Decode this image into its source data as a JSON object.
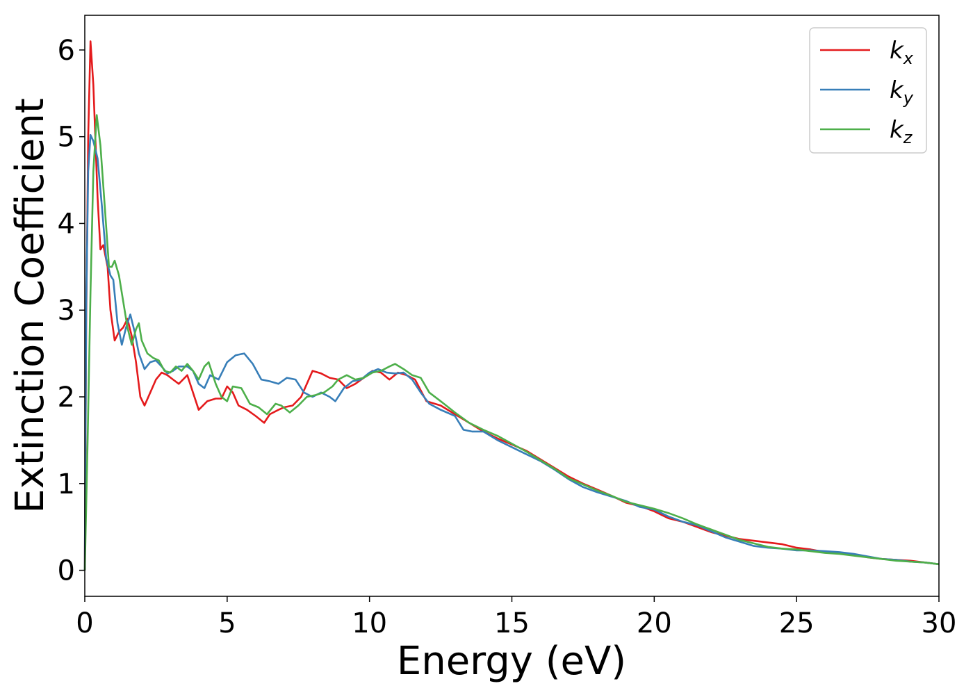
{
  "chart_data": {
    "type": "line",
    "title": "",
    "xlabel": "Energy (eV)",
    "ylabel": "Extinction Coefficient",
    "xlim": [
      0,
      30
    ],
    "ylim": [
      -0.3,
      6.4
    ],
    "xticks": [
      0,
      5,
      10,
      15,
      20,
      25,
      30
    ],
    "yticks": [
      0,
      1,
      2,
      3,
      4,
      5,
      6
    ],
    "grid": false,
    "legend_position": "top-right",
    "series": [
      {
        "name": "k",
        "subscript": "x",
        "color": "#e41a1c",
        "points": [
          [
            0,
            0
          ],
          [
            0.05,
            2.8
          ],
          [
            0.12,
            5.0
          ],
          [
            0.2,
            6.1
          ],
          [
            0.3,
            5.6
          ],
          [
            0.45,
            4.3
          ],
          [
            0.55,
            3.7
          ],
          [
            0.65,
            3.75
          ],
          [
            0.8,
            3.5
          ],
          [
            0.9,
            3.0
          ],
          [
            1.05,
            2.65
          ],
          [
            1.2,
            2.75
          ],
          [
            1.35,
            2.8
          ],
          [
            1.5,
            2.9
          ],
          [
            1.65,
            2.7
          ],
          [
            1.8,
            2.4
          ],
          [
            1.95,
            2.0
          ],
          [
            2.1,
            1.9
          ],
          [
            2.3,
            2.05
          ],
          [
            2.5,
            2.2
          ],
          [
            2.7,
            2.28
          ],
          [
            2.9,
            2.25
          ],
          [
            3.1,
            2.2
          ],
          [
            3.3,
            2.15
          ],
          [
            3.6,
            2.25
          ],
          [
            3.8,
            2.05
          ],
          [
            4.0,
            1.85
          ],
          [
            4.3,
            1.95
          ],
          [
            4.6,
            1.98
          ],
          [
            4.8,
            1.98
          ],
          [
            5.0,
            2.12
          ],
          [
            5.2,
            2.05
          ],
          [
            5.4,
            1.9
          ],
          [
            5.7,
            1.85
          ],
          [
            6.0,
            1.78
          ],
          [
            6.3,
            1.7
          ],
          [
            6.5,
            1.8
          ],
          [
            6.8,
            1.85
          ],
          [
            7.0,
            1.88
          ],
          [
            7.3,
            1.9
          ],
          [
            7.6,
            2.0
          ],
          [
            7.8,
            2.15
          ],
          [
            8.0,
            2.3
          ],
          [
            8.3,
            2.27
          ],
          [
            8.6,
            2.22
          ],
          [
            8.9,
            2.2
          ],
          [
            9.2,
            2.1
          ],
          [
            9.5,
            2.15
          ],
          [
            9.8,
            2.22
          ],
          [
            10.1,
            2.3
          ],
          [
            10.4,
            2.28
          ],
          [
            10.7,
            2.2
          ],
          [
            11.0,
            2.28
          ],
          [
            11.3,
            2.25
          ],
          [
            11.6,
            2.2
          ],
          [
            12.0,
            1.95
          ],
          [
            12.5,
            1.9
          ],
          [
            13.0,
            1.8
          ],
          [
            13.5,
            1.7
          ],
          [
            14.0,
            1.6
          ],
          [
            14.5,
            1.52
          ],
          [
            15.0,
            1.45
          ],
          [
            15.5,
            1.38
          ],
          [
            16.0,
            1.28
          ],
          [
            16.5,
            1.18
          ],
          [
            17.0,
            1.08
          ],
          [
            17.5,
            1.0
          ],
          [
            18.0,
            0.93
          ],
          [
            18.5,
            0.86
          ],
          [
            19.0,
            0.78
          ],
          [
            19.5,
            0.74
          ],
          [
            20.0,
            0.68
          ],
          [
            20.5,
            0.6
          ],
          [
            21.0,
            0.56
          ],
          [
            21.5,
            0.5
          ],
          [
            22.0,
            0.44
          ],
          [
            22.5,
            0.4
          ],
          [
            23.0,
            0.36
          ],
          [
            23.5,
            0.34
          ],
          [
            24.0,
            0.32
          ],
          [
            24.5,
            0.3
          ],
          [
            25.0,
            0.26
          ],
          [
            25.5,
            0.24
          ],
          [
            26.0,
            0.21
          ],
          [
            26.5,
            0.2
          ],
          [
            27.0,
            0.18
          ],
          [
            27.5,
            0.15
          ],
          [
            28.0,
            0.13
          ],
          [
            28.5,
            0.12
          ],
          [
            29.0,
            0.11
          ],
          [
            29.5,
            0.09
          ],
          [
            30.0,
            0.07
          ]
        ]
      },
      {
        "name": "k",
        "subscript": "y",
        "color": "#377eb8",
        "points": [
          [
            0,
            0
          ],
          [
            0.05,
            3.0
          ],
          [
            0.12,
            4.6
          ],
          [
            0.2,
            5.02
          ],
          [
            0.3,
            4.95
          ],
          [
            0.45,
            4.75
          ],
          [
            0.6,
            4.2
          ],
          [
            0.75,
            3.6
          ],
          [
            0.9,
            3.4
          ],
          [
            1.0,
            3.35
          ],
          [
            1.15,
            2.85
          ],
          [
            1.3,
            2.6
          ],
          [
            1.45,
            2.8
          ],
          [
            1.6,
            2.95
          ],
          [
            1.75,
            2.75
          ],
          [
            1.9,
            2.5
          ],
          [
            2.1,
            2.32
          ],
          [
            2.3,
            2.4
          ],
          [
            2.5,
            2.42
          ],
          [
            2.7,
            2.35
          ],
          [
            2.9,
            2.27
          ],
          [
            3.1,
            2.3
          ],
          [
            3.3,
            2.35
          ],
          [
            3.6,
            2.35
          ],
          [
            3.8,
            2.3
          ],
          [
            4.0,
            2.15
          ],
          [
            4.2,
            2.1
          ],
          [
            4.4,
            2.25
          ],
          [
            4.7,
            2.2
          ],
          [
            5.0,
            2.4
          ],
          [
            5.3,
            2.48
          ],
          [
            5.6,
            2.5
          ],
          [
            5.9,
            2.38
          ],
          [
            6.2,
            2.2
          ],
          [
            6.5,
            2.18
          ],
          [
            6.8,
            2.15
          ],
          [
            7.1,
            2.22
          ],
          [
            7.4,
            2.2
          ],
          [
            7.7,
            2.05
          ],
          [
            8.0,
            2.0
          ],
          [
            8.3,
            2.05
          ],
          [
            8.6,
            2.0
          ],
          [
            8.8,
            1.95
          ],
          [
            9.1,
            2.1
          ],
          [
            9.4,
            2.18
          ],
          [
            9.7,
            2.2
          ],
          [
            10.0,
            2.28
          ],
          [
            10.3,
            2.32
          ],
          [
            10.6,
            2.28
          ],
          [
            10.9,
            2.27
          ],
          [
            11.2,
            2.28
          ],
          [
            11.5,
            2.2
          ],
          [
            11.8,
            2.05
          ],
          [
            12.1,
            1.92
          ],
          [
            12.5,
            1.85
          ],
          [
            13.0,
            1.78
          ],
          [
            13.3,
            1.62
          ],
          [
            13.6,
            1.6
          ],
          [
            14.0,
            1.6
          ],
          [
            14.5,
            1.5
          ],
          [
            15.0,
            1.42
          ],
          [
            15.5,
            1.34
          ],
          [
            16.0,
            1.26
          ],
          [
            16.5,
            1.16
          ],
          [
            17.0,
            1.05
          ],
          [
            17.5,
            0.96
          ],
          [
            18.0,
            0.9
          ],
          [
            18.5,
            0.85
          ],
          [
            19.0,
            0.8
          ],
          [
            19.5,
            0.73
          ],
          [
            20.0,
            0.7
          ],
          [
            20.5,
            0.62
          ],
          [
            21.0,
            0.56
          ],
          [
            21.5,
            0.52
          ],
          [
            22.0,
            0.45
          ],
          [
            22.5,
            0.38
          ],
          [
            23.0,
            0.33
          ],
          [
            23.5,
            0.28
          ],
          [
            24.0,
            0.26
          ],
          [
            24.5,
            0.25
          ],
          [
            25.0,
            0.23
          ],
          [
            25.5,
            0.23
          ],
          [
            26.0,
            0.22
          ],
          [
            26.5,
            0.21
          ],
          [
            27.0,
            0.19
          ],
          [
            27.5,
            0.16
          ],
          [
            28.0,
            0.13
          ],
          [
            28.5,
            0.12
          ],
          [
            29.0,
            0.1
          ],
          [
            29.5,
            0.09
          ],
          [
            30.0,
            0.07
          ]
        ]
      },
      {
        "name": "k",
        "subscript": "z",
        "color": "#4daf4a",
        "points": [
          [
            0,
            0
          ],
          [
            0.1,
            1.5
          ],
          [
            0.2,
            3.2
          ],
          [
            0.3,
            4.6
          ],
          [
            0.42,
            5.25
          ],
          [
            0.55,
            4.9
          ],
          [
            0.7,
            4.2
          ],
          [
            0.85,
            3.5
          ],
          [
            0.95,
            3.5
          ],
          [
            1.05,
            3.57
          ],
          [
            1.2,
            3.4
          ],
          [
            1.35,
            3.1
          ],
          [
            1.5,
            2.8
          ],
          [
            1.65,
            2.6
          ],
          [
            1.8,
            2.78
          ],
          [
            1.9,
            2.85
          ],
          [
            2.0,
            2.65
          ],
          [
            2.2,
            2.5
          ],
          [
            2.4,
            2.45
          ],
          [
            2.6,
            2.42
          ],
          [
            2.8,
            2.3
          ],
          [
            3.0,
            2.28
          ],
          [
            3.2,
            2.35
          ],
          [
            3.4,
            2.3
          ],
          [
            3.6,
            2.38
          ],
          [
            3.8,
            2.3
          ],
          [
            4.0,
            2.2
          ],
          [
            4.2,
            2.35
          ],
          [
            4.35,
            2.4
          ],
          [
            4.6,
            2.15
          ],
          [
            4.8,
            2.0
          ],
          [
            5.0,
            1.95
          ],
          [
            5.2,
            2.12
          ],
          [
            5.5,
            2.1
          ],
          [
            5.8,
            1.92
          ],
          [
            6.1,
            1.88
          ],
          [
            6.4,
            1.8
          ],
          [
            6.7,
            1.92
          ],
          [
            6.9,
            1.9
          ],
          [
            7.2,
            1.82
          ],
          [
            7.5,
            1.9
          ],
          [
            7.8,
            2.0
          ],
          [
            8.1,
            2.02
          ],
          [
            8.4,
            2.05
          ],
          [
            8.7,
            2.12
          ],
          [
            8.9,
            2.2
          ],
          [
            9.2,
            2.25
          ],
          [
            9.5,
            2.2
          ],
          [
            9.8,
            2.22
          ],
          [
            10.1,
            2.28
          ],
          [
            10.4,
            2.3
          ],
          [
            10.7,
            2.35
          ],
          [
            10.9,
            2.38
          ],
          [
            11.2,
            2.32
          ],
          [
            11.5,
            2.25
          ],
          [
            11.8,
            2.22
          ],
          [
            12.1,
            2.05
          ],
          [
            12.5,
            1.95
          ],
          [
            13.0,
            1.82
          ],
          [
            13.5,
            1.7
          ],
          [
            14.0,
            1.62
          ],
          [
            14.5,
            1.55
          ],
          [
            15.0,
            1.46
          ],
          [
            15.5,
            1.37
          ],
          [
            16.0,
            1.27
          ],
          [
            16.5,
            1.17
          ],
          [
            17.0,
            1.06
          ],
          [
            17.5,
            0.99
          ],
          [
            18.0,
            0.92
          ],
          [
            18.5,
            0.86
          ],
          [
            19.0,
            0.79
          ],
          [
            19.5,
            0.75
          ],
          [
            20.0,
            0.71
          ],
          [
            20.5,
            0.66
          ],
          [
            21.0,
            0.6
          ],
          [
            21.5,
            0.53
          ],
          [
            22.0,
            0.47
          ],
          [
            22.5,
            0.41
          ],
          [
            23.0,
            0.35
          ],
          [
            23.5,
            0.31
          ],
          [
            24.0,
            0.27
          ],
          [
            24.5,
            0.25
          ],
          [
            25.0,
            0.24
          ],
          [
            25.5,
            0.22
          ],
          [
            26.0,
            0.2
          ],
          [
            26.5,
            0.19
          ],
          [
            27.0,
            0.17
          ],
          [
            27.5,
            0.15
          ],
          [
            28.0,
            0.13
          ],
          [
            28.5,
            0.11
          ],
          [
            29.0,
            0.1
          ],
          [
            29.5,
            0.09
          ],
          [
            30.0,
            0.07
          ]
        ]
      }
    ]
  }
}
